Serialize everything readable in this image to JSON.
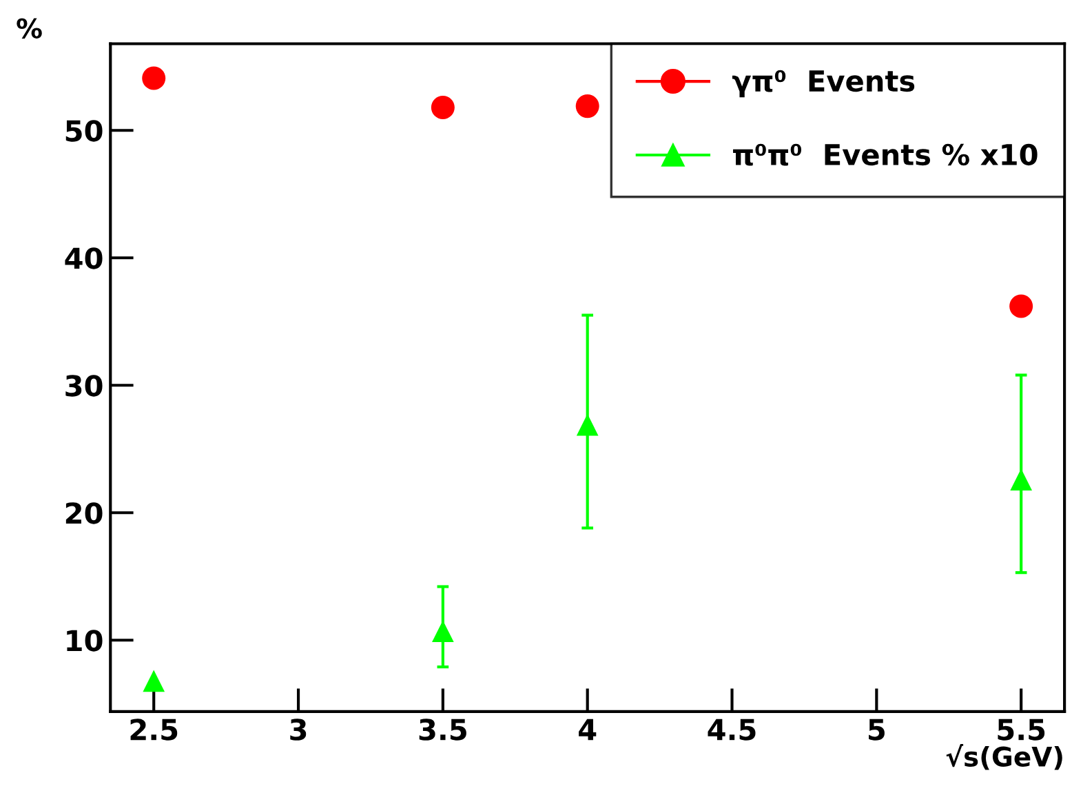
{
  "chart_data": {
    "type": "scatter",
    "xlabel": "√s(GeV)",
    "ylabel": "%",
    "xlim": [
      2.35,
      5.65
    ],
    "ylim": [
      4.4,
      56.8
    ],
    "xticks": [
      2.5,
      3,
      3.5,
      4,
      4.5,
      5,
      5.5
    ],
    "yticks": [
      10,
      20,
      30,
      40,
      50
    ],
    "grid": false,
    "legend": "top right",
    "series": [
      {
        "name": "γπ⁰  Events",
        "color": "#ff0000",
        "marker": "circle",
        "x": [
          2.5,
          3.5,
          4,
          5.5
        ],
        "values": [
          54.1,
          51.8,
          51.9,
          36.2
        ]
      },
      {
        "name": "π⁰π⁰  Events % x10",
        "color": "#00ff00",
        "marker": "triangle",
        "x": [
          2.5,
          3.5,
          4,
          5.5
        ],
        "values": [
          6.8,
          10.7,
          26.9,
          22.6
        ],
        "errors": [
          null,
          [
            7.9,
            14.2
          ],
          [
            18.8,
            35.5
          ],
          [
            15.3,
            30.8
          ]
        ]
      }
    ]
  }
}
